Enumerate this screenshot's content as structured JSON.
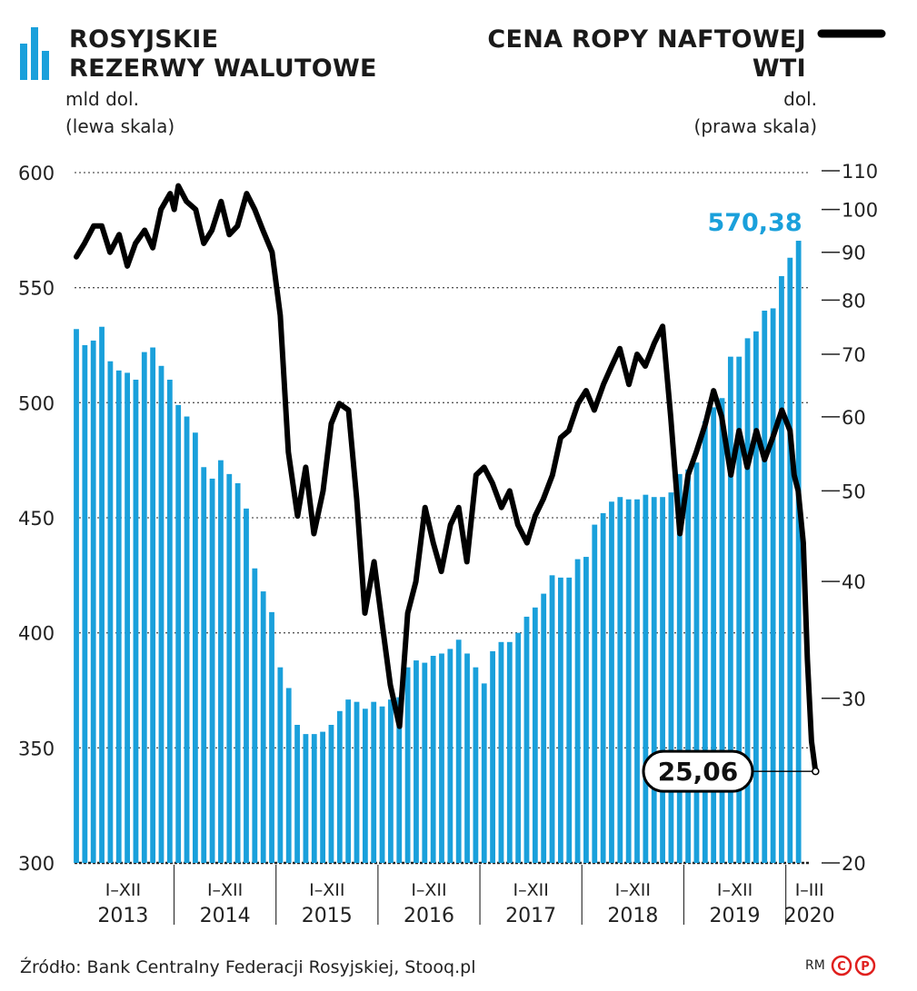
{
  "left_legend": {
    "icon": "bar-chart-icon",
    "title_line1": "ROSYJSKIE",
    "title_line2": "REZERWY WALUTOWE",
    "unit": "mld dol.",
    "scale": "(lewa skala)"
  },
  "right_legend": {
    "icon": "line-swatch-icon",
    "title_line1": "CENA ROPY NAFTOWEJ",
    "title_line2": "WTI",
    "unit": "dol.",
    "scale": "(prawa skala)"
  },
  "colors": {
    "bars": "#1aa0db",
    "line": "#000000",
    "highlight": "#1aa0db"
  },
  "source": "Źródło: Bank Centralny Federacji Rosyjskiej, Stooq.pl",
  "copyright": "RM",
  "chart_data": {
    "type": "bar+line",
    "left_axis": {
      "min": 300,
      "max": 600,
      "ticks": [
        "600",
        "550",
        "500",
        "450",
        "400",
        "350",
        "300"
      ]
    },
    "right_axis": {
      "scale": "log",
      "min": 20,
      "max": 110,
      "ticks": [
        "110",
        "100",
        "90",
        "80",
        "70",
        "60",
        "50",
        "40",
        "30",
        "20"
      ]
    },
    "x_groups": [
      {
        "range": "I–XII",
        "year": "2013"
      },
      {
        "range": "I–XII",
        "year": "2014"
      },
      {
        "range": "I–XII",
        "year": "2015"
      },
      {
        "range": "I–XII",
        "year": "2016"
      },
      {
        "range": "I–XII",
        "year": "2017"
      },
      {
        "range": "I–XII",
        "year": "2018"
      },
      {
        "range": "I–XII",
        "year": "2019"
      },
      {
        "range": "I–III",
        "year": "2020"
      }
    ],
    "reserves_series": {
      "name": "Rosyjskie rezerwy walutowe (mld dol.)",
      "values": [
        532,
        525,
        527,
        533,
        518,
        514,
        513,
        510,
        522,
        524,
        516,
        510,
        499,
        494,
        487,
        472,
        467,
        475,
        469,
        465,
        454,
        428,
        418,
        409,
        385,
        376,
        360,
        356,
        356,
        357,
        360,
        366,
        371,
        370,
        367,
        370,
        368,
        371,
        372,
        385,
        388,
        387,
        390,
        391,
        393,
        397,
        391,
        385,
        378,
        392,
        396,
        396,
        400,
        407,
        411,
        417,
        425,
        424,
        424,
        432,
        433,
        447,
        452,
        457,
        459,
        458,
        458,
        460,
        459,
        459,
        461,
        469,
        471,
        474,
        492,
        498,
        502,
        520,
        520,
        528,
        531,
        540,
        541,
        555,
        563,
        570.38
      ],
      "last_label": "570,38"
    },
    "oil_series": {
      "name": "Cena ropy naftowej WTI (dol.)",
      "values": [
        [
          2013.0,
          89
        ],
        [
          2013.08,
          92
        ],
        [
          2013.17,
          96
        ],
        [
          2013.25,
          96
        ],
        [
          2013.33,
          90
        ],
        [
          2013.42,
          94
        ],
        [
          2013.5,
          87
        ],
        [
          2013.58,
          92
        ],
        [
          2013.67,
          95
        ],
        [
          2013.75,
          91
        ],
        [
          2013.83,
          100
        ],
        [
          2013.92,
          104
        ],
        [
          2013.96,
          100
        ],
        [
          2014.0,
          106
        ],
        [
          2014.08,
          102
        ],
        [
          2014.17,
          100
        ],
        [
          2014.25,
          92
        ],
        [
          2014.33,
          95
        ],
        [
          2014.42,
          102
        ],
        [
          2014.5,
          94
        ],
        [
          2014.58,
          96
        ],
        [
          2014.67,
          104
        ],
        [
          2014.75,
          100
        ],
        [
          2014.83,
          95
        ],
        [
          2014.92,
          90
        ],
        [
          2015.0,
          77
        ],
        [
          2015.08,
          55
        ],
        [
          2015.17,
          47
        ],
        [
          2015.25,
          53
        ],
        [
          2015.33,
          45
        ],
        [
          2015.42,
          50
        ],
        [
          2015.5,
          59
        ],
        [
          2015.58,
          62
        ],
        [
          2015.67,
          61
        ],
        [
          2015.75,
          49
        ],
        [
          2015.83,
          37
        ],
        [
          2015.92,
          42
        ],
        [
          2016.0,
          36
        ],
        [
          2016.08,
          31
        ],
        [
          2016.17,
          28
        ],
        [
          2016.25,
          37
        ],
        [
          2016.33,
          40
        ],
        [
          2016.42,
          48
        ],
        [
          2016.5,
          44
        ],
        [
          2016.58,
          41
        ],
        [
          2016.67,
          46
        ],
        [
          2016.75,
          48
        ],
        [
          2016.83,
          42
        ],
        [
          2016.92,
          52
        ],
        [
          2017.0,
          53
        ],
        [
          2017.08,
          51
        ],
        [
          2017.17,
          48
        ],
        [
          2017.25,
          50
        ],
        [
          2017.33,
          46
        ],
        [
          2017.42,
          44
        ],
        [
          2017.5,
          47
        ],
        [
          2017.58,
          49
        ],
        [
          2017.67,
          52
        ],
        [
          2017.75,
          57
        ],
        [
          2017.83,
          58
        ],
        [
          2017.92,
          62
        ],
        [
          2018.0,
          64
        ],
        [
          2018.08,
          61
        ],
        [
          2018.17,
          65
        ],
        [
          2018.25,
          68
        ],
        [
          2018.33,
          71
        ],
        [
          2018.42,
          65
        ],
        [
          2018.5,
          70
        ],
        [
          2018.58,
          68
        ],
        [
          2018.67,
          72
        ],
        [
          2018.75,
          75
        ],
        [
          2018.83,
          60
        ],
        [
          2018.92,
          45
        ],
        [
          2019.0,
          52
        ],
        [
          2019.08,
          55
        ],
        [
          2019.17,
          59
        ],
        [
          2019.25,
          64
        ],
        [
          2019.33,
          60
        ],
        [
          2019.42,
          52
        ],
        [
          2019.5,
          58
        ],
        [
          2019.58,
          53
        ],
        [
          2019.67,
          58
        ],
        [
          2019.75,
          54
        ],
        [
          2019.83,
          57
        ],
        [
          2019.92,
          61
        ],
        [
          2020.0,
          58
        ],
        [
          2020.04,
          52
        ],
        [
          2020.08,
          50
        ],
        [
          2020.13,
          44
        ],
        [
          2020.17,
          33
        ],
        [
          2020.21,
          27
        ],
        [
          2020.25,
          25.06
        ]
      ],
      "last_label": "25,06"
    }
  }
}
